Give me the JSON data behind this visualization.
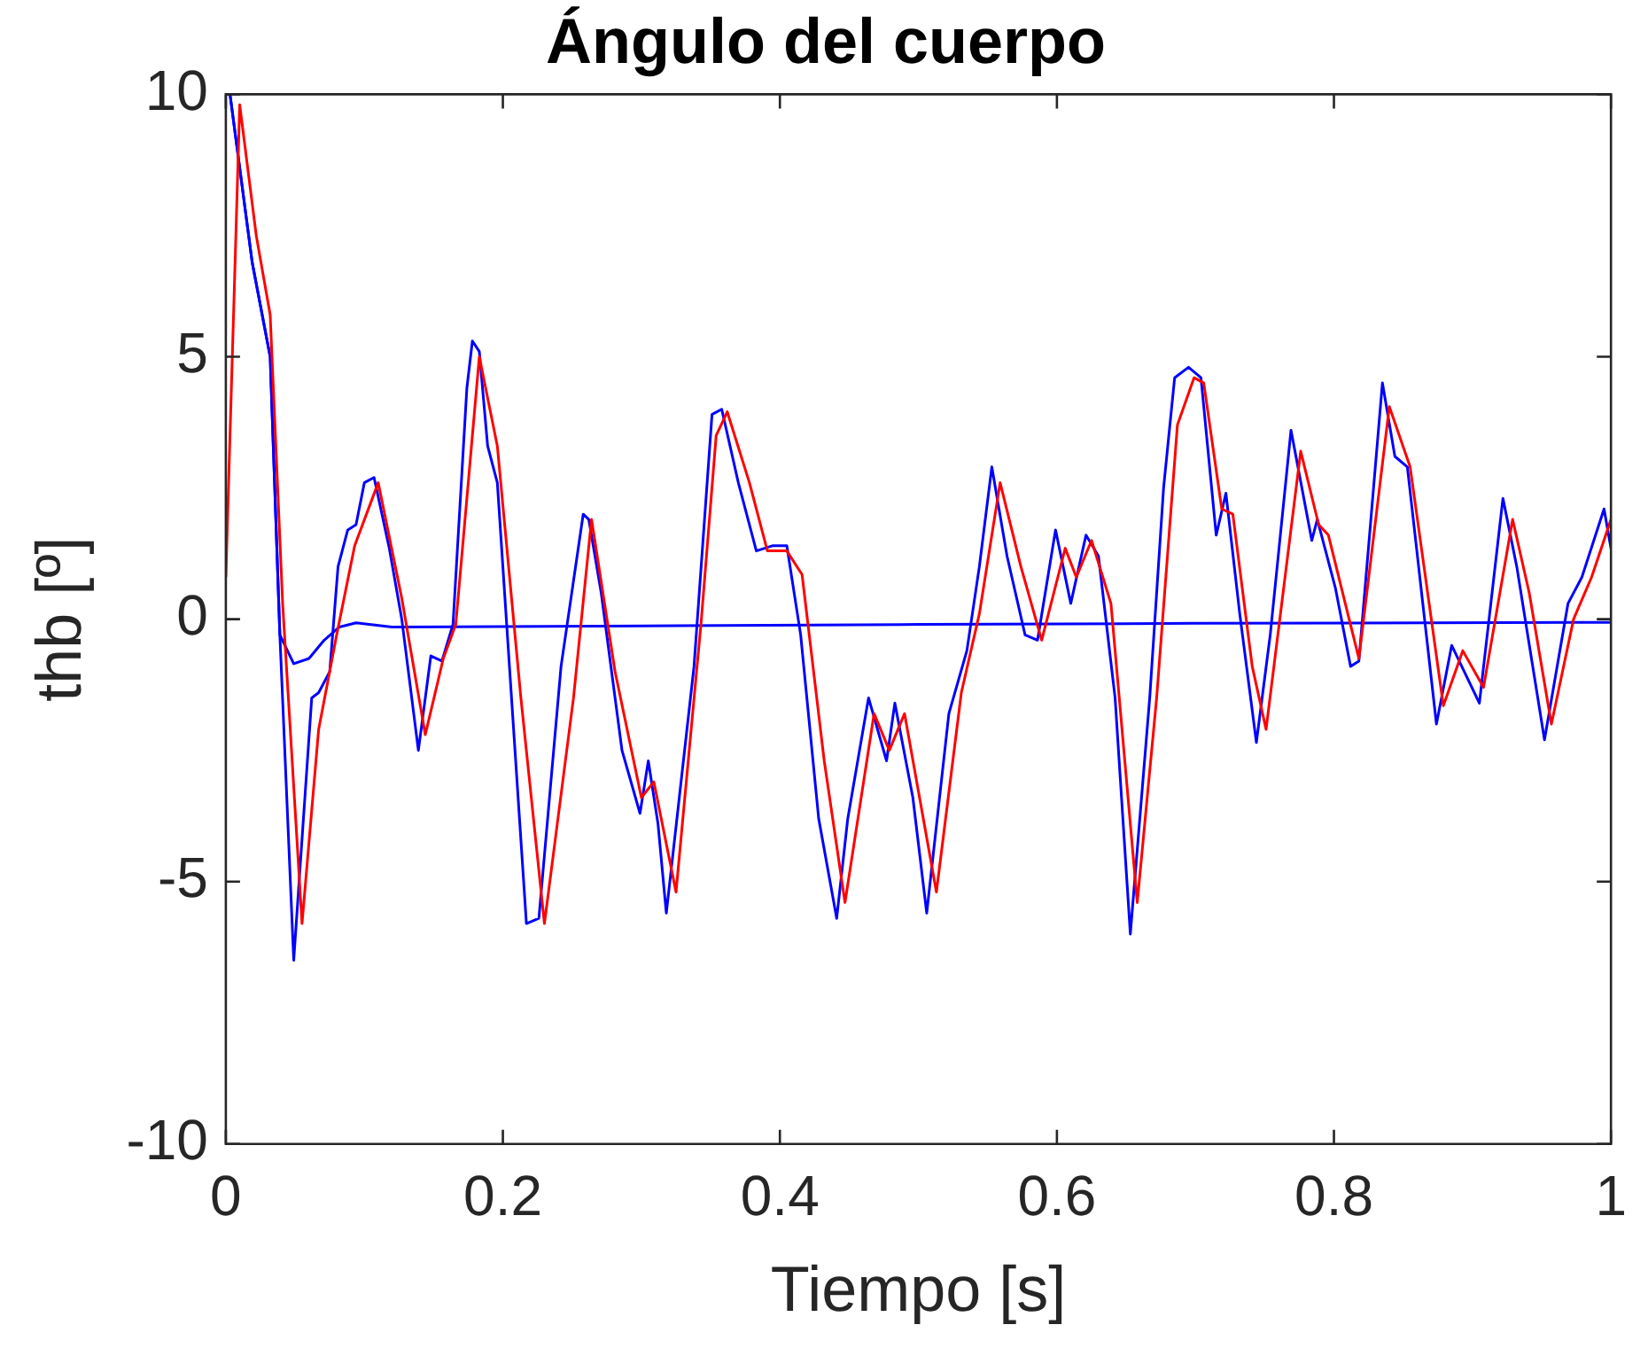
{
  "chart_data": {
    "type": "line",
    "title": "Ángulo del cuerpo",
    "xlabel": "Tiempo [s]",
    "ylabel": "thb [º]",
    "xlim": [
      0,
      1
    ],
    "ylim": [
      -10,
      10
    ],
    "xticks": [
      0,
      0.2,
      0.4,
      0.6,
      0.8,
      1
    ],
    "yticks": [
      -10,
      -5,
      0,
      5,
      10
    ],
    "grid": false,
    "legend": false,
    "marker": "none",
    "line_style": "solid",
    "series": [
      {
        "color": "#ff0000",
        "x": [
          0,
          0.01,
          0.022,
          0.032,
          0.041,
          0.055,
          0.067,
          0.08,
          0.093,
          0.11,
          0.127,
          0.144,
          0.157,
          0.166,
          0.183,
          0.196,
          0.213,
          0.23,
          0.251,
          0.264,
          0.281,
          0.3,
          0.309,
          0.325,
          0.343,
          0.354,
          0.362,
          0.378,
          0.391,
          0.405,
          0.416,
          0.432,
          0.447,
          0.468,
          0.479,
          0.49,
          0.513,
          0.531,
          0.544,
          0.559,
          0.574,
          0.589,
          0.606,
          0.614,
          0.625,
          0.639,
          0.658,
          0.672,
          0.687,
          0.699,
          0.706,
          0.719,
          0.727,
          0.741,
          0.751,
          0.776,
          0.789,
          0.796,
          0.818,
          0.84,
          0.855,
          0.879,
          0.893,
          0.908,
          0.929,
          0.941,
          0.957,
          0.973,
          0.986,
          1
        ],
        "values": [
          0.8,
          9.8,
          7.3,
          5.8,
          0.3,
          -5.8,
          -2.1,
          -0.3,
          1.4,
          2.6,
          0.4,
          -2.2,
          -0.75,
          -0.1,
          5,
          3.3,
          -1.5,
          -5.8,
          -1.5,
          1.9,
          -1,
          -3.4,
          -3.1,
          -5.2,
          -0.1,
          3.5,
          3.95,
          2.6,
          1.3,
          1.3,
          0.85,
          -2.7,
          -5.4,
          -1.8,
          -2.5,
          -1.8,
          -5.2,
          -1.4,
          0.1,
          2.6,
          1,
          -0.4,
          1.35,
          0.8,
          1.5,
          0.3,
          -5.4,
          -1.5,
          3.7,
          4.6,
          4.5,
          2.1,
          2,
          -0.9,
          -2.1,
          3.2,
          1.8,
          1.6,
          -0.75,
          4.05,
          2.9,
          -1.65,
          -0.6,
          -1.3,
          1.9,
          0.5,
          -2,
          0,
          0.8,
          1.9
        ]
      },
      {
        "color": "#0000ff",
        "x": [
          0,
          0.003,
          0.019,
          0.032,
          0.039,
          0.049,
          0.062,
          0.067,
          0.075,
          0.081,
          0.088,
          0.094,
          0.1,
          0.107,
          0.118,
          0.127,
          0.139,
          0.148,
          0.156,
          0.164,
          0.174,
          0.178,
          0.183,
          0.189,
          0.196,
          0.217,
          0.226,
          0.242,
          0.258,
          0.262,
          0.271,
          0.286,
          0.299,
          0.305,
          0.312,
          0.318,
          0.338,
          0.351,
          0.358,
          0.37,
          0.383,
          0.395,
          0.405,
          0.415,
          0.428,
          0.441,
          0.449,
          0.464,
          0.477,
          0.483,
          0.496,
          0.506,
          0.522,
          0.535,
          0.544,
          0.553,
          0.564,
          0.577,
          0.586,
          0.599,
          0.61,
          0.621,
          0.63,
          0.642,
          0.653,
          0.667,
          0.677,
          0.685,
          0.695,
          0.704,
          0.715,
          0.722,
          0.732,
          0.744,
          0.754,
          0.769,
          0.784,
          0.788,
          0.801,
          0.812,
          0.818,
          0.835,
          0.844,
          0.853,
          0.874,
          0.885,
          0.905,
          0.922,
          0.932,
          0.952,
          0.969,
          0.979,
          0.995,
          1
        ],
        "values": [
          10,
          10,
          6.8,
          5,
          -0.3,
          -6.5,
          -1.5,
          -1.4,
          -1,
          1,
          1.7,
          1.8,
          2.6,
          2.7,
          1.35,
          0,
          -2.5,
          -0.7,
          -0.8,
          -0.1,
          4.4,
          5.3,
          5.1,
          3.3,
          2.6,
          -5.8,
          -5.7,
          -0.9,
          2,
          1.9,
          0.5,
          -2.5,
          -3.7,
          -2.7,
          -3.9,
          -5.6,
          -0.9,
          3.9,
          4,
          2.6,
          1.3,
          1.4,
          1.4,
          -0.3,
          -3.8,
          -5.7,
          -3.8,
          -1.5,
          -2.7,
          -1.6,
          -3.4,
          -5.6,
          -1.8,
          -0.6,
          1,
          2.9,
          1.2,
          -0.3,
          -0.4,
          1.7,
          0.3,
          1.6,
          1.2,
          -1.5,
          -6,
          -1.5,
          2.5,
          4.6,
          4.8,
          4.6,
          1.6,
          2.4,
          0.1,
          -2.35,
          -0.3,
          3.6,
          1.5,
          1.9,
          0.6,
          -0.9,
          -0.8,
          4.5,
          3.1,
          2.9,
          -2,
          -0.5,
          -1.6,
          2.3,
          1,
          -2.3,
          0.3,
          0.8,
          2.1,
          1.35
        ]
      },
      {
        "color": "#0000ff",
        "x": [
          0,
          0.003,
          0.019,
          0.032,
          0.039,
          0.049,
          0.06,
          0.071,
          0.082,
          0.094,
          0.12,
          0.3,
          0.5,
          0.7,
          1
        ],
        "values": [
          10,
          10,
          6.8,
          5,
          -0.3,
          -0.85,
          -0.75,
          -0.4,
          -0.15,
          -0.07,
          -0.15,
          -0.13,
          -0.1,
          -0.08,
          -0.06
        ]
      }
    ]
  }
}
